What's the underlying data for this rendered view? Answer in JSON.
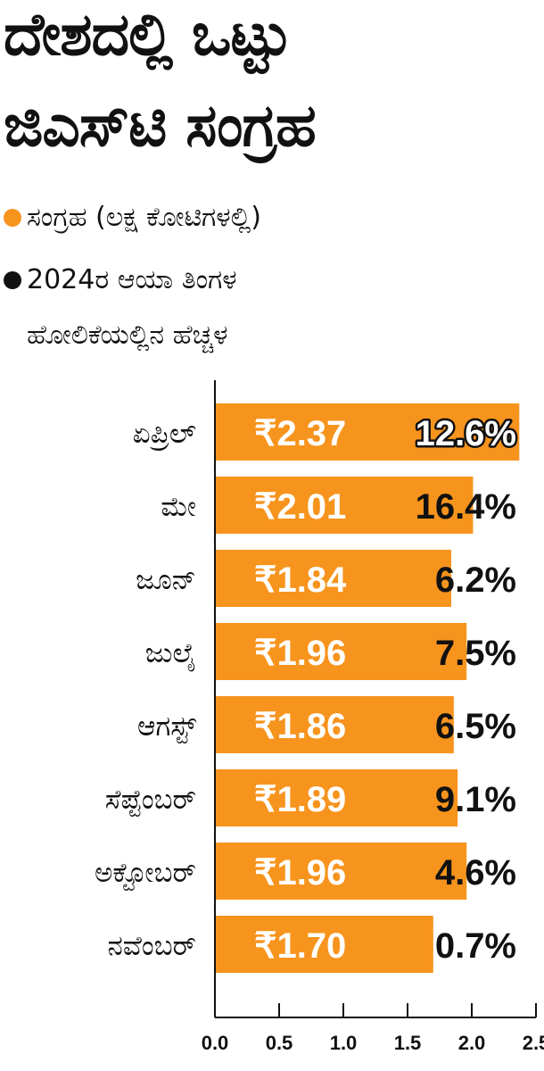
{
  "chart_data": {
    "type": "bar",
    "orientation": "horizontal",
    "title": "ದೇಶದಲ್ಲಿ ಒಟ್ಟು ಜಿಎಸ್‌ಟಿ ಸಂಗ್ರಹ",
    "title_lines": [
      "ದೇಶದಲ್ಲಿ ಒಟ್ಟು",
      "ಜಿಎಸ್‌ಟಿ ಸಂಗ್ರಹ"
    ],
    "legend": [
      {
        "label": "ಸಂಗ್ರಹ (ಲಕ್ಷ ಕೋಟಿಗಳಲ್ಲಿ)",
        "color": "#f7941d",
        "lines": [
          "ಸಂಗ್ರಹ (ಲಕ್ಷ ಕೋಟಿಗಳಲ್ಲಿ)"
        ]
      },
      {
        "label": "2024ರ ಆಯಾ ತಿಂಗಳ ಹೋಲಿಕೆಯಲ್ಲಿನ ಹೆಚ್ಚಳ",
        "color": "#111111",
        "lines": [
          "2024ರ ಆಯಾ ತಿಂಗಳ",
          "ಹೋಲಿಕೆಯಲ್ಲಿನ ಹೆಚ್ಚಳ"
        ]
      }
    ],
    "categories": [
      "ಏಪ್ರಿಲ್",
      "ಮೇ",
      "ಜೂನ್",
      "ಜುಲೈ",
      "ಆಗಸ್ಟ್",
      "ಸೆಪ್ಟೆಂಬರ್",
      "ಅಕ್ಟೋಬರ್",
      "ನವೆಂಬರ್"
    ],
    "values": [
      2.37,
      2.01,
      1.84,
      1.96,
      1.86,
      1.89,
      1.96,
      1.7
    ],
    "value_labels": [
      "₹2.37",
      "₹2.01",
      "₹1.84",
      "₹1.96",
      "₹1.86",
      "₹1.89",
      "₹1.96",
      "₹1.70"
    ],
    "growth_labels": [
      "12.6%",
      "16.4%",
      "6.2%",
      "7.5%",
      "6.5%",
      "9.1%",
      "4.6%",
      "0.7%"
    ],
    "xlim": [
      0,
      2.5
    ],
    "xticks": [
      "0.0",
      "0.5",
      "1.0",
      "1.5",
      "2.0",
      "2.5"
    ],
    "bar_color": "#f7941d",
    "grid": false
  }
}
